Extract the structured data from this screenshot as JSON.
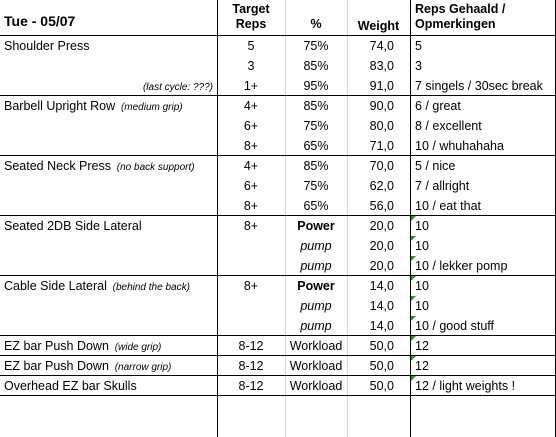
{
  "header": {
    "day": "Tue - 05/07",
    "target_reps": [
      "Target",
      "Reps"
    ],
    "pct": "%",
    "weight": "Weight",
    "reps_done": [
      "Reps Gehaald /",
      "Opmerkingen"
    ]
  },
  "rows": [
    {
      "exercise": "Shoulder Press",
      "note": "",
      "reps": "5",
      "pct": "75%",
      "weight": "74,0",
      "result": "5"
    },
    {
      "exercise": "",
      "note": "",
      "reps": "3",
      "pct": "85%",
      "weight": "83,0",
      "result": "3"
    },
    {
      "exercise": "",
      "note": "(last cycle: ???)",
      "reps": "1+",
      "pct": "95%",
      "weight": "91,0",
      "result": "7 singels / 30sec break"
    },
    {
      "exercise": "Barbell Upright Row",
      "note": "(medium grip)",
      "reps": "4+",
      "pct": "85%",
      "weight": "90,0",
      "result": "6 / great"
    },
    {
      "exercise": "",
      "note": "",
      "reps": "6+",
      "pct": "75%",
      "weight": "80,0",
      "result": "8 / excellent"
    },
    {
      "exercise": "",
      "note": "",
      "reps": "8+",
      "pct": "65%",
      "weight": "71,0",
      "result": "10 / whuhahaha"
    },
    {
      "exercise": "Seated Neck Press",
      "note": "(no back support)",
      "reps": "4+",
      "pct": "85%",
      "weight": "70,0",
      "result": "5 / nice"
    },
    {
      "exercise": "",
      "note": "",
      "reps": "6+",
      "pct": "75%",
      "weight": "62,0",
      "result": "7 / allright"
    },
    {
      "exercise": "",
      "note": "",
      "reps": "8+",
      "pct": "65%",
      "weight": "56,0",
      "result": "10 / eat that"
    },
    {
      "exercise": "Seated 2DB Side Lateral",
      "note": "",
      "reps": "8+",
      "pct": "Power",
      "weight": "20,0",
      "result": "10"
    },
    {
      "exercise": "",
      "note": "",
      "reps": "",
      "pct": "pump",
      "weight": "20,0",
      "result": "10"
    },
    {
      "exercise": "",
      "note": "",
      "reps": "",
      "pct": "pump",
      "weight": "20,0",
      "result": "10 / lekker pomp"
    },
    {
      "exercise": "Cable Side Lateral",
      "note": "(behind the back)",
      "reps": "8+",
      "pct": "Power",
      "weight": "14,0",
      "result": "10"
    },
    {
      "exercise": "",
      "note": "",
      "reps": "",
      "pct": "pump",
      "weight": "14,0",
      "result": "10"
    },
    {
      "exercise": "",
      "note": "",
      "reps": "",
      "pct": "pump",
      "weight": "14,0",
      "result": "10 / good stuff"
    },
    {
      "exercise": "EZ bar Push Down",
      "note": "(wide grip)",
      "reps": "8-12",
      "pct": "Workload",
      "weight": "50,0",
      "result": "12"
    },
    {
      "exercise": "EZ bar Push Down",
      "note": "(narrow grip)",
      "reps": "8-12",
      "pct": "Workload",
      "weight": "50,0",
      "result": "12"
    },
    {
      "exercise": "Overhead EZ bar Skulls",
      "note": "",
      "reps": "8-12",
      "pct": "Workload",
      "weight": "50,0",
      "result": "12 / light weights !"
    }
  ],
  "colors": {
    "grid": "#000000",
    "comment_marker": "#2e8b2e",
    "light_grid": "#d4d4d4"
  }
}
